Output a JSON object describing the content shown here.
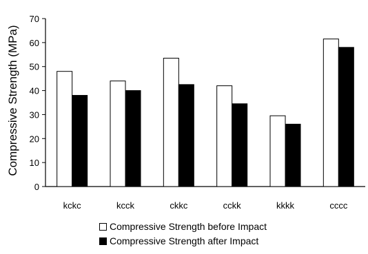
{
  "chart_data": {
    "type": "bar",
    "title": "",
    "xlabel": "",
    "ylabel": "Compressive Strength (MPa)",
    "ylim": [
      0,
      70
    ],
    "yticks": [
      0,
      10,
      20,
      30,
      40,
      50,
      60,
      70
    ],
    "grid": false,
    "legend_position": "bottom",
    "categories": [
      "kckc",
      "kcck",
      "ckkc",
      "cckk",
      "kkkk",
      "cccc"
    ],
    "series": [
      {
        "name": "Compressive Strength before Impact",
        "color": "#ffffff",
        "values": [
          48,
          44,
          53.5,
          42,
          29.5,
          61.5
        ]
      },
      {
        "name": "Compressive Strength after Impact",
        "color": "#000000",
        "values": [
          38,
          40,
          42.5,
          34.5,
          26,
          58
        ]
      }
    ]
  }
}
